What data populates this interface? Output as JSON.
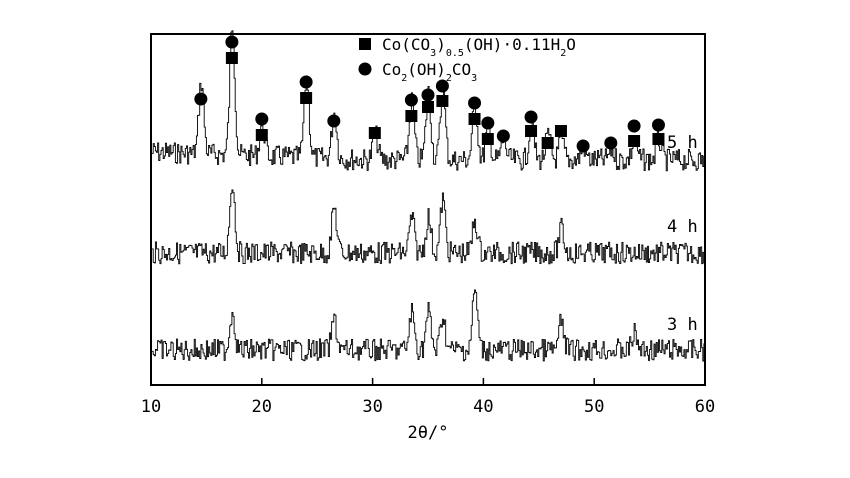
{
  "chart_data": {
    "type": "line",
    "title": "",
    "xlabel": "2θ/°",
    "ylabel": "",
    "xlim": [
      10,
      60
    ],
    "x_ticks": [
      "10",
      "20",
      "30",
      "40",
      "50",
      "60"
    ],
    "grid": false,
    "legend_position": "top-right",
    "legend": [
      {
        "marker": "square",
        "label": "Co(CO3)0.5(OH)·0.11H2O"
      },
      {
        "marker": "circle",
        "label": "Co2(OH)2CO3"
      }
    ],
    "series": [
      {
        "name": "5 h",
        "peaks": [
          {
            "x": 14.5,
            "intensity": 0.55
          },
          {
            "x": 17.3,
            "intensity": 1.0
          },
          {
            "x": 20.0,
            "intensity": 0.25
          },
          {
            "x": 24.0,
            "intensity": 0.62
          },
          {
            "x": 26.5,
            "intensity": 0.35
          },
          {
            "x": 30.2,
            "intensity": 0.2
          },
          {
            "x": 33.5,
            "intensity": 0.45
          },
          {
            "x": 35.0,
            "intensity": 0.52
          },
          {
            "x": 36.3,
            "intensity": 0.55
          },
          {
            "x": 39.2,
            "intensity": 0.45
          },
          {
            "x": 40.4,
            "intensity": 0.25
          },
          {
            "x": 41.8,
            "intensity": 0.15
          },
          {
            "x": 44.3,
            "intensity": 0.28
          },
          {
            "x": 45.8,
            "intensity": 0.18
          },
          {
            "x": 47.0,
            "intensity": 0.15
          },
          {
            "x": 49.0,
            "intensity": 0.1
          },
          {
            "x": 51.5,
            "intensity": 0.08
          },
          {
            "x": 53.6,
            "intensity": 0.15
          },
          {
            "x": 55.8,
            "intensity": 0.15
          }
        ]
      },
      {
        "name": "4 h",
        "peaks": [
          {
            "x": 17.3,
            "intensity": 0.6
          },
          {
            "x": 26.5,
            "intensity": 0.38
          },
          {
            "x": 33.5,
            "intensity": 0.3
          },
          {
            "x": 35.0,
            "intensity": 0.3
          },
          {
            "x": 36.3,
            "intensity": 0.45
          },
          {
            "x": 39.2,
            "intensity": 0.28
          },
          {
            "x": 47.0,
            "intensity": 0.2
          }
        ]
      },
      {
        "name": "3 h",
        "peaks": [
          {
            "x": 17.3,
            "intensity": 0.35
          },
          {
            "x": 26.5,
            "intensity": 0.28
          },
          {
            "x": 33.5,
            "intensity": 0.35
          },
          {
            "x": 35.0,
            "intensity": 0.35
          },
          {
            "x": 36.3,
            "intensity": 0.32
          },
          {
            "x": 39.2,
            "intensity": 0.55
          },
          {
            "x": 47.0,
            "intensity": 0.25
          },
          {
            "x": 53.6,
            "intensity": 0.15
          }
        ]
      }
    ],
    "phase_markers": [
      {
        "x": 14.5,
        "phase": "circle"
      },
      {
        "x": 17.3,
        "phase": "circle"
      },
      {
        "x": 17.3,
        "phase": "square"
      },
      {
        "x": 20.0,
        "phase": "circle"
      },
      {
        "x": 20.0,
        "phase": "square"
      },
      {
        "x": 24.0,
        "phase": "circle"
      },
      {
        "x": 24.0,
        "phase": "square"
      },
      {
        "x": 26.5,
        "phase": "circle"
      },
      {
        "x": 30.2,
        "phase": "square"
      },
      {
        "x": 33.5,
        "phase": "circle"
      },
      {
        "x": 33.5,
        "phase": "square"
      },
      {
        "x": 35.0,
        "phase": "circle"
      },
      {
        "x": 35.0,
        "phase": "square"
      },
      {
        "x": 36.3,
        "phase": "circle"
      },
      {
        "x": 36.3,
        "phase": "square"
      },
      {
        "x": 39.2,
        "phase": "circle"
      },
      {
        "x": 39.2,
        "phase": "square"
      },
      {
        "x": 40.4,
        "phase": "circle"
      },
      {
        "x": 40.4,
        "phase": "square"
      },
      {
        "x": 41.8,
        "phase": "circle"
      },
      {
        "x": 44.3,
        "phase": "circle"
      },
      {
        "x": 44.3,
        "phase": "square"
      },
      {
        "x": 45.8,
        "phase": "square"
      },
      {
        "x": 47.0,
        "phase": "square"
      },
      {
        "x": 49.0,
        "phase": "circle"
      },
      {
        "x": 51.5,
        "phase": "circle"
      },
      {
        "x": 53.6,
        "phase": "circle"
      },
      {
        "x": 53.6,
        "phase": "square"
      },
      {
        "x": 55.8,
        "phase": "circle"
      },
      {
        "x": 55.8,
        "phase": "square"
      }
    ]
  }
}
